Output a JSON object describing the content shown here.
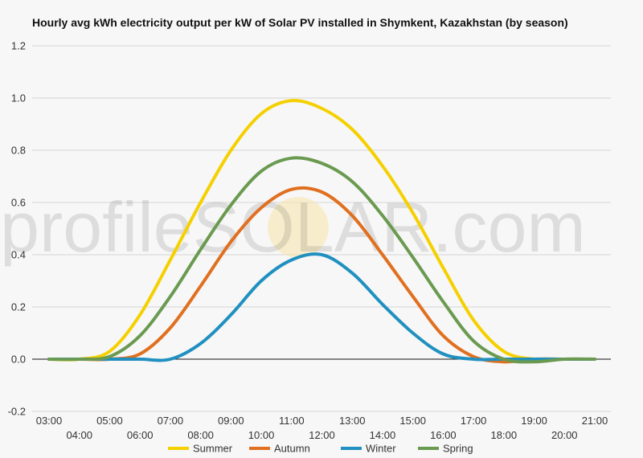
{
  "chart_data": {
    "type": "line",
    "title": "Hourly avg kWh electricity output per kW of Solar PV installed in Shymkent, Kazakhstan (by season)",
    "xlabel": "",
    "ylabel": "",
    "ylim": [
      -0.2,
      1.2
    ],
    "yticks": [
      "-0.2",
      "0.0",
      "0.2",
      "0.4",
      "0.6",
      "0.8",
      "1.0",
      "1.2"
    ],
    "x": [
      "03:00",
      "04:00",
      "05:00",
      "06:00",
      "07:00",
      "08:00",
      "09:00",
      "10:00",
      "11:00",
      "12:00",
      "13:00",
      "14:00",
      "15:00",
      "16:00",
      "17:00",
      "18:00",
      "19:00",
      "20:00",
      "21:00"
    ],
    "grid": true,
    "legend_position": "bottom",
    "series": [
      {
        "name": "Summer",
        "color": "#f5d000",
        "values": [
          0.0,
          0.0,
          0.03,
          0.17,
          0.38,
          0.6,
          0.8,
          0.94,
          0.99,
          0.96,
          0.88,
          0.74,
          0.56,
          0.35,
          0.15,
          0.03,
          0.0,
          0.0,
          0.0
        ]
      },
      {
        "name": "Autumn",
        "color": "#e07020",
        "values": [
          0.0,
          0.0,
          0.0,
          0.02,
          0.12,
          0.28,
          0.45,
          0.58,
          0.65,
          0.64,
          0.55,
          0.4,
          0.24,
          0.09,
          0.01,
          -0.01,
          0.0,
          0.0,
          0.0
        ]
      },
      {
        "name": "Winter",
        "color": "#2090c0",
        "values": [
          0.0,
          0.0,
          0.0,
          0.0,
          0.0,
          0.06,
          0.17,
          0.3,
          0.38,
          0.4,
          0.33,
          0.21,
          0.1,
          0.02,
          0.0,
          0.0,
          0.0,
          0.0,
          0.0
        ]
      },
      {
        "name": "Spring",
        "color": "#6a9a50",
        "values": [
          0.0,
          0.0,
          0.01,
          0.09,
          0.24,
          0.42,
          0.59,
          0.72,
          0.77,
          0.75,
          0.68,
          0.55,
          0.39,
          0.22,
          0.07,
          0.0,
          -0.01,
          0.0,
          0.0
        ]
      }
    ],
    "watermark": "profileSOLAR.com"
  }
}
